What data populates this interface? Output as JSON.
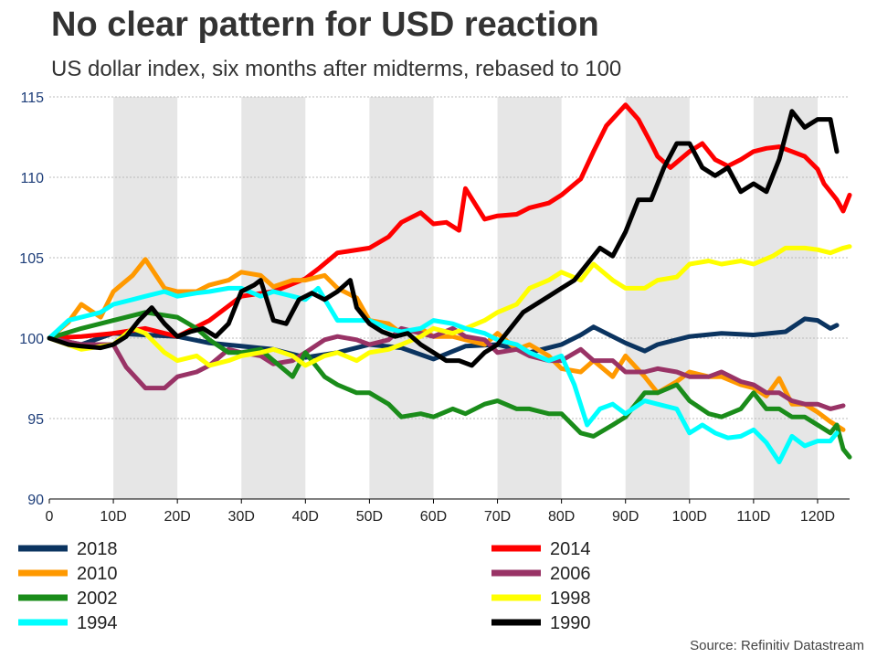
{
  "title": "No clear pattern for USD reaction",
  "subtitle": "US dollar index, six months after midterms, rebased to 100",
  "source": "Source: Refinitiv Datastream",
  "colors": {
    "y_tick": "#1f3f7a",
    "x_tick": "#222222",
    "band": "#e6e6e6",
    "grid": "#bbbbbb"
  },
  "chart_data": {
    "type": "line",
    "title": "No clear pattern for USD reaction",
    "subtitle": "US dollar index, six months after midterms, rebased to 100",
    "xlabel": "",
    "ylabel": "",
    "xlim": [
      0,
      125
    ],
    "ylim": [
      90,
      115
    ],
    "x_ticks": [
      0,
      10,
      20,
      30,
      40,
      50,
      60,
      70,
      80,
      90,
      100,
      110,
      120
    ],
    "x_tick_labels": [
      "0",
      "10D",
      "20D",
      "30D",
      "40D",
      "50D",
      "60D",
      "70D",
      "80D",
      "90D",
      "100D",
      "110D",
      "120D"
    ],
    "y_ticks": [
      90,
      95,
      100,
      105,
      110,
      115
    ],
    "y_tick_labels": [
      "90",
      "95",
      "100",
      "105",
      "110",
      "115"
    ],
    "shaded_bands": [
      [
        10,
        20
      ],
      [
        30,
        40
      ],
      [
        50,
        60
      ],
      [
        70,
        80
      ],
      [
        90,
        100
      ],
      [
        110,
        120
      ]
    ],
    "legend": {
      "position": "bottom",
      "entries": [
        "2018",
        "2014",
        "2010",
        "2006",
        "2002",
        "1998",
        "1994",
        "1990"
      ]
    },
    "series": [
      {
        "name": "2018",
        "color": "#0b3460",
        "x": [
          0,
          5,
          10,
          15,
          20,
          25,
          30,
          35,
          40,
          45,
          50,
          55,
          60,
          65,
          70,
          75,
          80,
          83,
          85,
          90,
          93,
          95,
          100,
          105,
          110,
          115,
          118,
          120,
          122,
          123
        ],
        "y": [
          100,
          99.6,
          100.3,
          100.2,
          100.1,
          99.7,
          99.5,
          99.3,
          98.8,
          99.1,
          99.6,
          99.4,
          98.7,
          99.5,
          99.6,
          99.1,
          99.6,
          100.2,
          100.7,
          99.7,
          99.2,
          99.6,
          100.1,
          100.3,
          100.2,
          100.4,
          101.2,
          101.1,
          100.6,
          100.8
        ]
      },
      {
        "name": "2014",
        "color": "#ff0000",
        "x": [
          0,
          5,
          10,
          15,
          20,
          25,
          30,
          35,
          40,
          42,
          45,
          50,
          53,
          55,
          58,
          60,
          62,
          64,
          65,
          68,
          70,
          73,
          75,
          78,
          80,
          83,
          85,
          87,
          90,
          92,
          94,
          95,
          97,
          100,
          102,
          104,
          106,
          108,
          110,
          112,
          114,
          116,
          118,
          120,
          121,
          123,
          124,
          125
        ],
        "y": [
          100,
          100.1,
          100.3,
          100.6,
          100.1,
          101.1,
          102.6,
          102.9,
          103.7,
          104.3,
          105.3,
          105.6,
          106.3,
          107.2,
          107.8,
          107.1,
          107.2,
          106.7,
          109.3,
          107.4,
          107.6,
          107.7,
          108.1,
          108.4,
          108.9,
          109.9,
          111.6,
          113.2,
          114.5,
          113.6,
          112.1,
          111.3,
          110.6,
          111.6,
          112.1,
          111.1,
          110.7,
          111.1,
          111.6,
          111.8,
          111.9,
          111.6,
          111.3,
          110.5,
          109.6,
          108.6,
          107.9,
          108.9
        ]
      },
      {
        "name": "2010",
        "color": "#ff9900",
        "x": [
          0,
          3,
          5,
          8,
          10,
          13,
          15,
          18,
          20,
          23,
          25,
          28,
          30,
          33,
          35,
          38,
          40,
          43,
          45,
          48,
          50,
          53,
          55,
          58,
          60,
          63,
          65,
          68,
          70,
          73,
          75,
          78,
          80,
          83,
          85,
          88,
          90,
          93,
          95,
          98,
          100,
          103,
          105,
          108,
          110,
          112,
          114,
          116,
          118,
          120,
          122,
          124
        ],
        "y": [
          100,
          101,
          102.1,
          101.3,
          102.9,
          103.9,
          104.9,
          103.1,
          102.9,
          102.9,
          103.3,
          103.6,
          104.1,
          103.9,
          103.2,
          103.6,
          103.6,
          103.9,
          103.1,
          102.5,
          101.1,
          100.9,
          100.3,
          100.6,
          100.1,
          100.1,
          99.9,
          99.6,
          100.3,
          99.3,
          99.6,
          98.9,
          98.1,
          97.9,
          98.6,
          97.6,
          98.9,
          97.6,
          96.6,
          97.3,
          97.9,
          97.6,
          97.6,
          97.1,
          96.9,
          96.4,
          97.5,
          95.9,
          95.9,
          95.4,
          94.8,
          94.3
        ]
      },
      {
        "name": "2006",
        "color": "#993366",
        "x": [
          0,
          5,
          10,
          12,
          15,
          18,
          20,
          23,
          25,
          28,
          30,
          33,
          35,
          38,
          40,
          43,
          45,
          48,
          50,
          53,
          55,
          58,
          60,
          63,
          65,
          68,
          70,
          73,
          75,
          78,
          80,
          83,
          85,
          88,
          90,
          93,
          95,
          98,
          100,
          103,
          105,
          108,
          110,
          112,
          114,
          116,
          118,
          120,
          122,
          124
        ],
        "y": [
          100,
          99.6,
          99.6,
          98.2,
          96.9,
          96.9,
          97.6,
          97.9,
          98.3,
          99.3,
          99.1,
          98.9,
          98.4,
          98.6,
          99.1,
          99.9,
          100.1,
          99.9,
          99.6,
          99.9,
          100.6,
          100.3,
          100.1,
          100.6,
          100.1,
          99.9,
          99.1,
          99.3,
          98.9,
          98.6,
          98.6,
          99.3,
          98.6,
          98.6,
          97.9,
          97.9,
          98.1,
          97.9,
          97.6,
          97.6,
          97.9,
          97.3,
          97.1,
          96.6,
          96.6,
          96.1,
          95.9,
          95.9,
          95.6,
          95.8
        ]
      },
      {
        "name": "2002",
        "color": "#1a8c1a",
        "x": [
          0,
          5,
          10,
          15,
          20,
          23,
          25,
          28,
          30,
          33,
          35,
          38,
          40,
          43,
          45,
          48,
          50,
          53,
          55,
          58,
          60,
          63,
          65,
          68,
          70,
          73,
          75,
          78,
          80,
          83,
          85,
          88,
          90,
          93,
          95,
          98,
          100,
          103,
          105,
          108,
          110,
          112,
          114,
          116,
          118,
          120,
          122,
          123,
          124,
          125
        ],
        "y": [
          100,
          100.6,
          101.1,
          101.6,
          101.3,
          100.6,
          99.9,
          99.1,
          99.1,
          99.3,
          98.6,
          97.6,
          99.1,
          97.6,
          97.1,
          96.6,
          96.6,
          95.9,
          95.1,
          95.3,
          95.1,
          95.6,
          95.3,
          95.9,
          96.1,
          95.6,
          95.6,
          95.3,
          95.3,
          94.1,
          93.9,
          94.6,
          95.1,
          96.6,
          96.6,
          97.1,
          96.1,
          95.3,
          95.1,
          95.6,
          96.6,
          95.6,
          95.6,
          95.1,
          95.1,
          94.6,
          94.1,
          94.6,
          93.1,
          92.6
        ]
      },
      {
        "name": "1998",
        "color": "#ffff00",
        "x": [
          0,
          5,
          10,
          13,
          15,
          18,
          20,
          23,
          25,
          28,
          30,
          33,
          35,
          38,
          40,
          43,
          45,
          48,
          50,
          53,
          55,
          58,
          60,
          63,
          65,
          68,
          70,
          73,
          75,
          78,
          80,
          83,
          85,
          88,
          90,
          93,
          95,
          98,
          100,
          103,
          105,
          108,
          110,
          113,
          115,
          118,
          120,
          122,
          124,
          125
        ],
        "y": [
          100,
          99.3,
          99.6,
          100.6,
          100.3,
          99.1,
          98.6,
          98.9,
          98.3,
          98.6,
          98.9,
          99.1,
          99.3,
          98.9,
          98.3,
          98.9,
          99.1,
          98.6,
          99.1,
          99.3,
          99.6,
          100.1,
          100.6,
          100.3,
          100.6,
          101.1,
          101.6,
          102.1,
          103.1,
          103.6,
          104.1,
          103.6,
          104.6,
          103.6,
          103.1,
          103.1,
          103.6,
          103.8,
          104.6,
          104.8,
          104.6,
          104.8,
          104.6,
          105.1,
          105.6,
          105.6,
          105.5,
          105.3,
          105.6,
          105.7
        ]
      },
      {
        "name": "1994",
        "color": "#00ffff",
        "x": [
          0,
          3,
          5,
          8,
          10,
          13,
          15,
          18,
          20,
          23,
          25,
          28,
          30,
          33,
          35,
          38,
          40,
          42,
          45,
          48,
          50,
          53,
          55,
          58,
          60,
          63,
          65,
          68,
          70,
          73,
          75,
          78,
          80,
          82,
          84,
          86,
          88,
          90,
          93,
          95,
          98,
          100,
          102,
          104,
          106,
          108,
          110,
          112,
          114,
          116,
          118,
          120,
          122,
          123
        ],
        "y": [
          100,
          101.1,
          101.3,
          101.6,
          102.1,
          102.4,
          102.6,
          102.9,
          102.6,
          102.8,
          102.9,
          103.1,
          103.1,
          102.6,
          102.9,
          102.6,
          102.4,
          103.1,
          101.1,
          101.1,
          101.1,
          100.6,
          100.4,
          100.6,
          101.1,
          100.9,
          100.6,
          100.3,
          99.9,
          99.6,
          99.1,
          98.6,
          98.9,
          97.1,
          94.6,
          95.6,
          95.9,
          95.3,
          96.1,
          95.9,
          95.6,
          94.1,
          94.6,
          94.1,
          93.8,
          93.9,
          94.3,
          93.5,
          92.3,
          93.9,
          93.3,
          93.6,
          93.6,
          94.1
        ]
      },
      {
        "name": "1990",
        "color": "#000000",
        "x": [
          0,
          3,
          5,
          8,
          10,
          12,
          14,
          16,
          18,
          20,
          22,
          24,
          26,
          28,
          30,
          32,
          33,
          35,
          37,
          39,
          41,
          43,
          45,
          47,
          48,
          50,
          52,
          54,
          56,
          58,
          60,
          62,
          64,
          66,
          68,
          70,
          72,
          74,
          76,
          78,
          80,
          82,
          84,
          86,
          88,
          90,
          92,
          94,
          96,
          98,
          100,
          102,
          104,
          106,
          108,
          110,
          112,
          114,
          116,
          118,
          120,
          122,
          123
        ],
        "y": [
          100,
          99.6,
          99.5,
          99.4,
          99.6,
          100.1,
          101.1,
          101.9,
          100.9,
          100.1,
          100.4,
          100.6,
          100.1,
          100.9,
          102.9,
          103.3,
          103.6,
          101.1,
          100.9,
          102.4,
          102.8,
          102.4,
          102.9,
          103.6,
          101.9,
          100.9,
          100.4,
          100.1,
          100.3,
          99.6,
          99.1,
          98.6,
          98.6,
          98.3,
          99.1,
          99.6,
          100.6,
          101.6,
          102.1,
          102.6,
          103.1,
          103.6,
          104.6,
          105.6,
          105.1,
          106.6,
          108.6,
          108.6,
          110.6,
          112.1,
          112.1,
          110.6,
          110.1,
          110.6,
          109.1,
          109.6,
          109.1,
          111.1,
          114.1,
          113.1,
          113.6,
          113.6,
          111.6
        ]
      }
    ]
  }
}
